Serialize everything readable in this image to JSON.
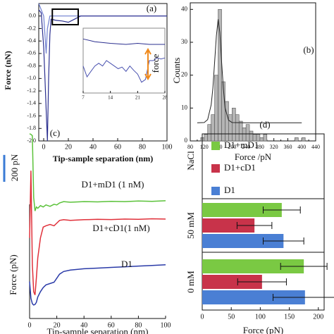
{
  "chart_data": [
    {
      "type": "line",
      "label": "(a)",
      "x_label": "Tip-sample separation (nm)",
      "y_label": "Force (nN)",
      "xlim": [
        -4,
        100
      ],
      "xticks": [
        0,
        20,
        40,
        60,
        80,
        100
      ],
      "ylim": [
        -2.0,
        0.2
      ],
      "yticks": [
        {
          "value": 0,
          "label": "0.0"
        },
        -0.2,
        -0.4,
        -0.6,
        -0.8,
        {
          "value": -1,
          "label": "-1.0"
        },
        -1.2,
        -1.4,
        -1.6,
        -1.8,
        {
          "value": -2,
          "label": "-2.0"
        }
      ],
      "series": [
        {
          "color": "#6f7fd0",
          "x": [
            -4,
            -2,
            0,
            1,
            2,
            3,
            5,
            10,
            20,
            40,
            60,
            80,
            100
          ],
          "values": [
            0.2,
            0.1,
            0.0,
            -0.3,
            -0.6,
            -0.2,
            0.0,
            0.0,
            0.0,
            0.0,
            0.0,
            0.0,
            0.0
          ]
        },
        {
          "color": "#2b2f8f",
          "x": [
            -4,
            -2,
            0,
            1,
            2,
            3,
            4,
            5,
            6,
            7,
            8,
            10,
            15,
            20,
            25,
            30,
            40,
            60,
            80,
            100
          ],
          "values": [
            0.1,
            0.05,
            -0.5,
            -1.0,
            -1.5,
            -2.0,
            -1.0,
            -0.3,
            -0.05,
            -0.05,
            -0.06,
            -0.07,
            -0.08,
            -0.1,
            -0.05,
            0.0,
            0.0,
            0.0,
            0.0,
            0.0
          ]
        }
      ],
      "inset": {
        "type": "line",
        "xlim": [
          7,
          28
        ],
        "xticks": [
          7,
          14,
          21,
          28
        ],
        "ylim": [
          -0.12,
          0.0
        ],
        "annotation": "force",
        "series": [
          {
            "color": "#2b2f8f",
            "x": [
              7,
              10,
              14,
              18,
              21,
              24,
              28
            ],
            "values": [
              -0.02,
              -0.025,
              -0.028,
              -0.03,
              -0.028,
              -0.03,
              -0.03
            ]
          },
          {
            "color": "#4a52b0",
            "x": [
              7,
              8,
              9,
              10,
              11,
              12,
              13,
              14,
              15,
              16,
              17,
              18,
              19,
              20,
              21,
              22,
              23,
              24,
              25,
              26,
              27,
              28
            ],
            "values": [
              -0.07,
              -0.09,
              -0.08,
              -0.07,
              -0.065,
              -0.07,
              -0.06,
              -0.065,
              -0.07,
              -0.075,
              -0.072,
              -0.08,
              -0.07,
              -0.078,
              -0.085,
              -0.1,
              -0.095,
              -0.06,
              -0.06,
              -0.055,
              -0.057,
              -0.055
            ]
          }
        ]
      }
    },
    {
      "type": "histogram",
      "label": "(b)",
      "x_label": "Force /pN",
      "y_label": "Counts",
      "color": "#b5b5b5",
      "xlim": [
        80,
        440
      ],
      "xticks": [
        80,
        100,
        120,
        140,
        160,
        180,
        200,
        220,
        240,
        260,
        280,
        300,
        320,
        340,
        360,
        380,
        400,
        420,
        440
      ],
      "ylim": [
        0,
        42
      ],
      "yticks": [
        0,
        10,
        20,
        30,
        40
      ],
      "bins": [
        110,
        120,
        130,
        140,
        150,
        160,
        170,
        180,
        190,
        200,
        210,
        220,
        230,
        240,
        250,
        260,
        270,
        280,
        290,
        300,
        310,
        320,
        330,
        340,
        350,
        360,
        370,
        380,
        390,
        400,
        410
      ],
      "counts": [
        1,
        2,
        5,
        8,
        20,
        40,
        18,
        12,
        8,
        10,
        8,
        6,
        4,
        5,
        3,
        2,
        2,
        1,
        2,
        0,
        0,
        0,
        0,
        0,
        0,
        0,
        0,
        1,
        0,
        1
      ],
      "fit": {
        "color": "#222222",
        "x": [
          100,
          120,
          130,
          140,
          145,
          150,
          155,
          160,
          165,
          170,
          175,
          180,
          190,
          200,
          240,
          300,
          400
        ],
        "values": [
          5.5,
          5.6,
          6.5,
          11,
          16,
          24,
          32,
          37,
          33,
          24,
          16,
          10,
          6.3,
          5.6,
          5.5,
          5.5,
          5.5
        ]
      }
    },
    {
      "type": "line",
      "label": "(c)",
      "x_label": "Tip-sample separation (nm)",
      "y_label": "Force (pN)",
      "xlim": [
        0,
        100
      ],
      "xticks": [
        0,
        20,
        40,
        60,
        80,
        100
      ],
      "ylim": [
        0,
        1400
      ],
      "scale_bar": {
        "value": 200,
        "label": "200 pN",
        "color": "#3a7bd5"
      },
      "series": [
        {
          "name": "D1+mD1 (1 nM)",
          "color": "#5bc23a",
          "x": [
            0,
            1,
            2,
            3,
            4,
            5,
            6,
            8,
            10,
            12,
            15,
            18,
            20,
            22,
            25,
            30,
            40,
            50,
            60,
            70,
            80,
            90,
            100
          ],
          "values": [
            1375,
            1370,
            1360,
            900,
            800,
            830,
            820,
            840,
            830,
            845,
            835,
            850,
            845,
            860,
            870,
            865,
            870,
            868,
            872,
            870,
            874,
            872,
            876
          ]
        },
        {
          "name": "D1+cD1(1 nM)",
          "color": "#e0303a",
          "x": [
            0,
            1,
            2,
            3,
            4,
            5,
            6,
            8,
            10,
            12,
            15,
            18,
            20,
            22,
            25,
            30,
            40,
            50,
            60,
            70,
            80,
            90,
            100
          ],
          "values": [
            600,
            1100,
            400,
            200,
            175,
            300,
            450,
            600,
            680,
            690,
            700,
            690,
            710,
            730,
            735,
            730,
            735,
            738,
            736,
            740,
            738,
            742,
            740
          ]
        },
        {
          "name": "D1",
          "color": "#2a3aa8",
          "x": [
            0,
            1,
            2,
            3,
            4,
            5,
            6,
            8,
            10,
            12,
            15,
            18,
            20,
            22,
            25,
            30,
            40,
            50,
            60,
            70,
            80,
            90,
            100
          ],
          "values": [
            275,
            150,
            110,
            100,
            105,
            120,
            160,
            200,
            230,
            250,
            260,
            270,
            300,
            330,
            350,
            360,
            370,
            375,
            380,
            385,
            390,
            395,
            400
          ]
        }
      ]
    },
    {
      "type": "hbar",
      "label": "(d)",
      "x_label": "Force (pN)",
      "group_label": "NaCl",
      "xlim": [
        0,
        210
      ],
      "xticks": [
        0,
        50,
        100,
        150,
        200
      ],
      "categories": [
        "0 mM",
        "50 mM"
      ],
      "series": [
        {
          "name": "D1+mD1",
          "color": "#7ac943",
          "values": [
            175,
            137
          ],
          "errors": [
            40,
            32
          ]
        },
        {
          "name": "D1+cD1",
          "color": "#c8334a",
          "values": [
            103,
            90
          ],
          "errors": [
            42,
            30
          ]
        },
        {
          "name": "D1",
          "color": "#4a7fd4",
          "values": [
            177,
            140
          ],
          "errors": [
            55,
            35
          ]
        }
      ]
    }
  ]
}
